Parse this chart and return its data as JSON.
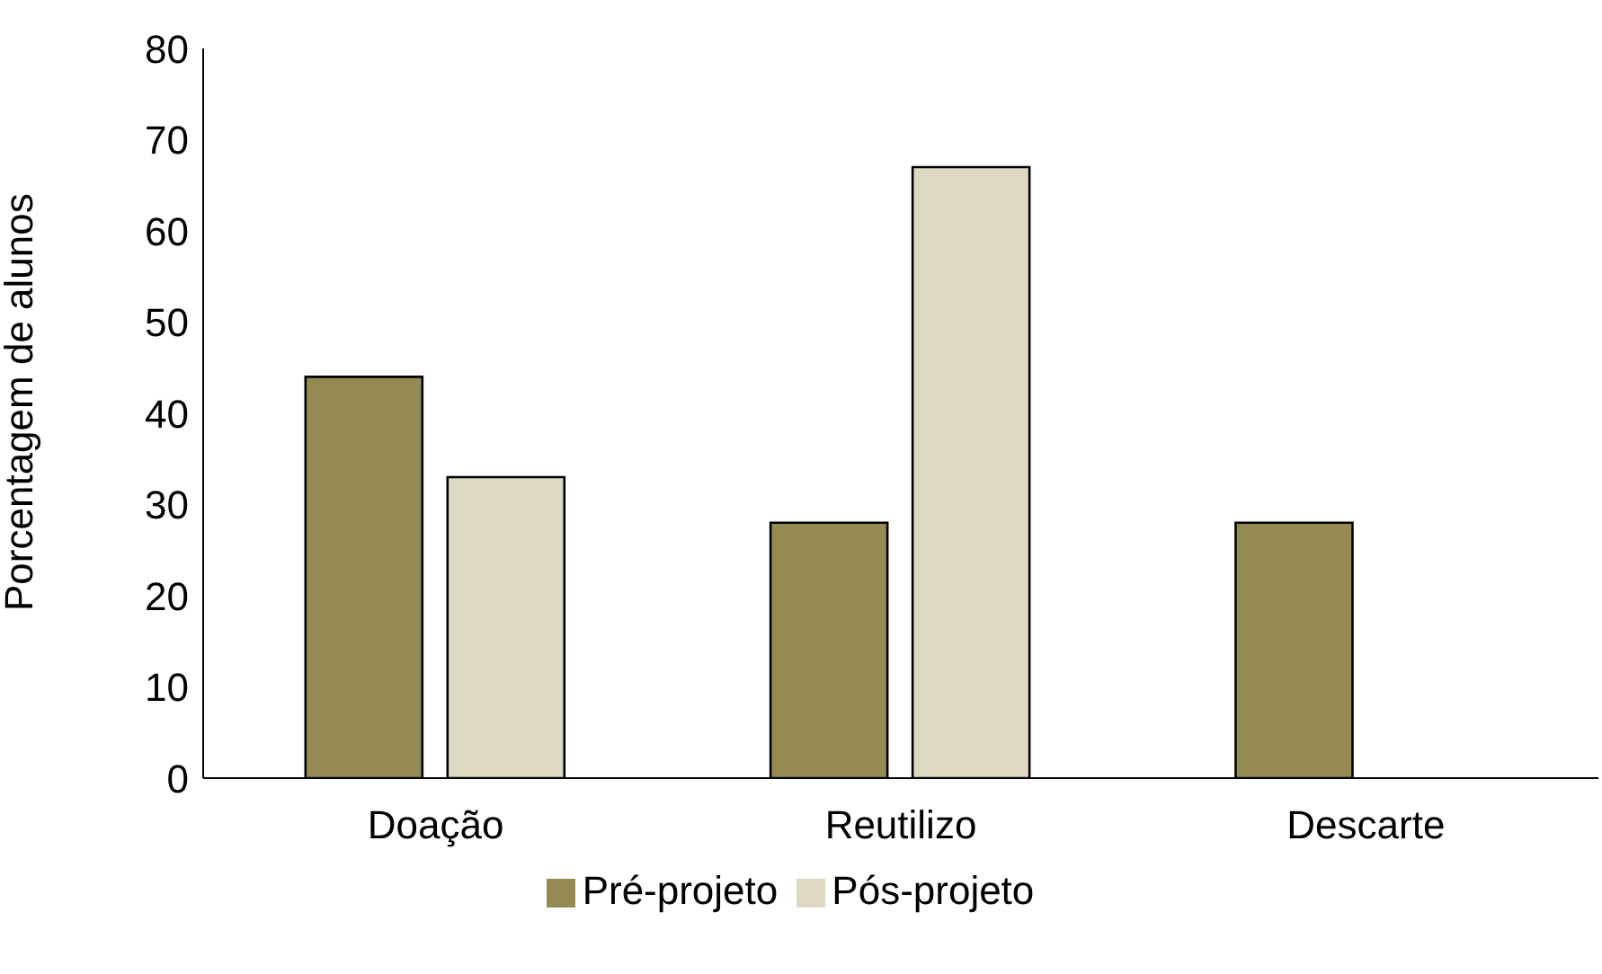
{
  "chart_data": {
    "type": "bar",
    "ylabel": "Porcentagem de alunos",
    "categories": [
      "Doação",
      "Reutilizo",
      "Descarte"
    ],
    "series": [
      {
        "name": "Pré-projeto",
        "color": "#948a54",
        "values": [
          44,
          28,
          28
        ]
      },
      {
        "name": "Pós-projeto",
        "color": "#ddd9c3",
        "values": [
          33,
          67,
          0
        ]
      }
    ],
    "ylim": [
      0,
      80
    ],
    "yticks": [
      0,
      10,
      20,
      30,
      40,
      50,
      60,
      70,
      80
    ],
    "grid": false,
    "legend": "bottom"
  }
}
